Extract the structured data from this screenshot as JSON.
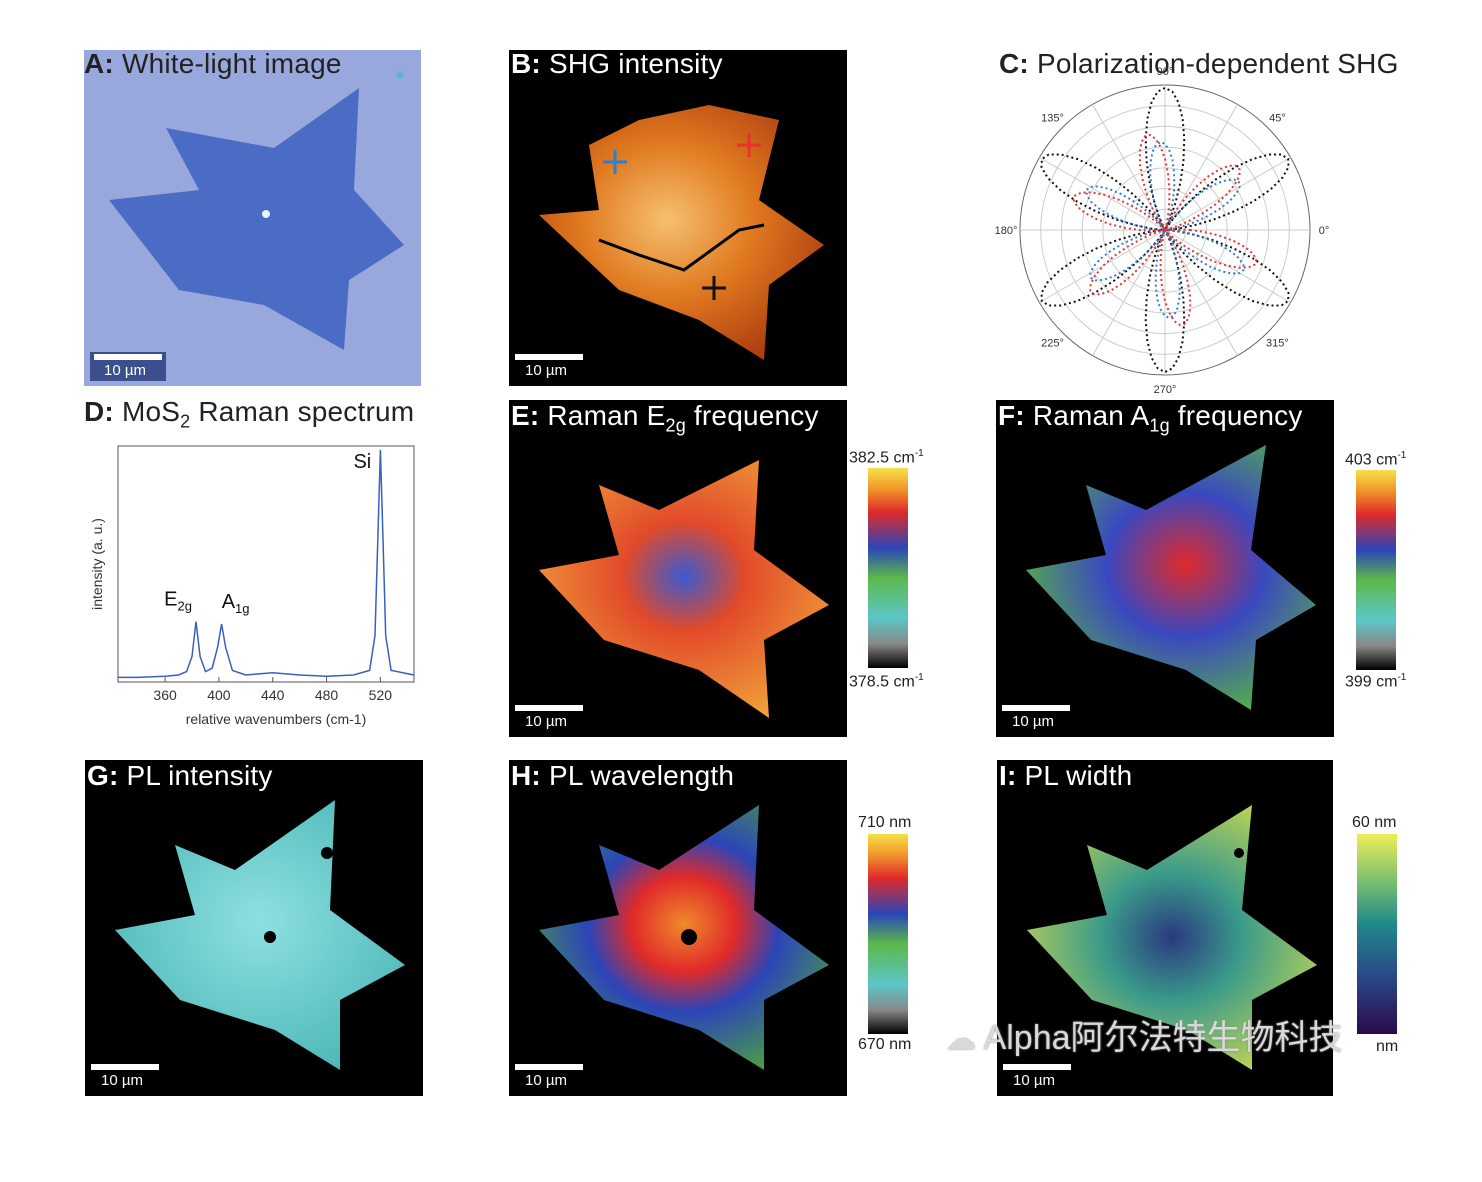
{
  "panels": {
    "A": {
      "letter": "A:",
      "title": "White-light image",
      "scale": "10 µm"
    },
    "B": {
      "letter": "B:",
      "title": "SHG intensity",
      "scale": "10 µm"
    },
    "C": {
      "letter": "C:",
      "title": "Polarization-dependent SHG",
      "angles": [
        "90°",
        "45°",
        "0°",
        "315°",
        "270°",
        "225°",
        "180°",
        "135°"
      ]
    },
    "D": {
      "letter": "D:",
      "title_pre": "MoS",
      "title_sub": "2",
      "title_post": " Raman spectrum"
    },
    "E": {
      "letter": "E:",
      "title_pre": "Raman E",
      "title_sub": "2g",
      "title_post": " frequency",
      "scale": "10 µm",
      "cb_max": "382.5 cm",
      "cb_min": "378.5 cm",
      "cb_sup": "-1"
    },
    "F": {
      "letter": "F:",
      "title_pre": "Raman A",
      "title_sub": "1g",
      "title_post": " frequency",
      "scale": "10 µm",
      "cb_max": "403 cm",
      "cb_min": "399 cm",
      "cb_sup": "-1"
    },
    "G": {
      "letter": "G:",
      "title": "PL intensity",
      "scale": "10 µm"
    },
    "H": {
      "letter": "H:",
      "title": "PL wavelength",
      "scale": "10 µm",
      "cb_max": "710 nm",
      "cb_min": "670 nm"
    },
    "I": {
      "letter": "I:",
      "title": "PL width",
      "scale": "10 µm",
      "cb_max": "60 nm",
      "cb_min": "nm"
    }
  },
  "chart_data": {
    "type": "line",
    "title": "MoS2 Raman spectrum",
    "xlabel": "relative wavenumbers (cm-1)",
    "ylabel": "intensity (a. u.)",
    "xlim": [
      325,
      545
    ],
    "xticks": [
      360,
      400,
      440,
      480,
      520
    ],
    "peaks": [
      {
        "label": "E2g",
        "x": 383,
        "y": 0.26
      },
      {
        "label": "A1g",
        "x": 402,
        "y": 0.25
      },
      {
        "label": "Si",
        "x": 520,
        "y": 1.0
      }
    ],
    "series": [
      {
        "values": [
          [
            325,
            0.02
          ],
          [
            340,
            0.02
          ],
          [
            360,
            0.025
          ],
          [
            370,
            0.03
          ],
          [
            376,
            0.045
          ],
          [
            380,
            0.11
          ],
          [
            383,
            0.26
          ],
          [
            386,
            0.11
          ],
          [
            390,
            0.045
          ],
          [
            395,
            0.06
          ],
          [
            399,
            0.15
          ],
          [
            402,
            0.25
          ],
          [
            405,
            0.15
          ],
          [
            410,
            0.05
          ],
          [
            420,
            0.03
          ],
          [
            440,
            0.04
          ],
          [
            460,
            0.03
          ],
          [
            480,
            0.025
          ],
          [
            500,
            0.03
          ],
          [
            512,
            0.05
          ],
          [
            516,
            0.2
          ],
          [
            518,
            0.6
          ],
          [
            520,
            1.0
          ],
          [
            522,
            0.6
          ],
          [
            524,
            0.2
          ],
          [
            528,
            0.05
          ],
          [
            545,
            0.03
          ]
        ]
      }
    ]
  },
  "colors": {
    "blue_line": "#3a5fc4",
    "shg_red": "#e8332c",
    "shg_blue": "#2f7fd0",
    "shg_black": "#111111"
  },
  "watermark": "Alpha阿尔法特生物科技"
}
